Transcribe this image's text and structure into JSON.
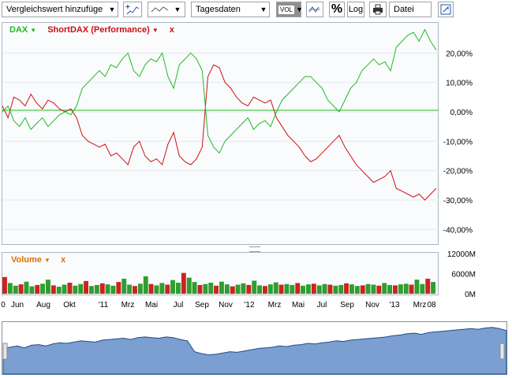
{
  "toolbar": {
    "compare_placeholder": "Vergleichswert hinzufüge",
    "interval": "Tagesdaten",
    "vol_label": "VOL",
    "percent_label": "%",
    "log_label": "Log",
    "file_label": "Datei"
  },
  "legend": {
    "dax": "DAX",
    "shortdax": "ShortDAX (Performance)",
    "remove": "x",
    "volume": "Volume"
  },
  "colors": {
    "dax": "#22bb22",
    "shortdax": "#cc1111",
    "volume": "#e07000",
    "navigator": "#7b9fd1"
  },
  "chart_data": [
    {
      "type": "line",
      "ylim": [
        -45,
        30
      ],
      "yticks": [
        20,
        10,
        0,
        -10,
        -20,
        -30,
        -40
      ],
      "ytick_labels": [
        "20,00%",
        "10,00%",
        "0,00%",
        "-10,00%",
        "-20,00%",
        "-30,00%",
        "-40,00%"
      ],
      "x_labels": [
        "0",
        "Jun",
        "Aug",
        "Okt",
        "'11",
        "Mrz",
        "Mai",
        "Jul",
        "Sep",
        "Nov",
        "'12",
        "Mrz",
        "Mai",
        "Jul",
        "Sep",
        "Nov",
        "'13",
        "Mrz",
        "08"
      ],
      "series": [
        {
          "name": "DAX",
          "values": [
            0,
            2,
            -3,
            -5,
            -2,
            -6,
            -4,
            -2,
            -5,
            -3,
            -1,
            0,
            -1,
            2,
            8,
            10,
            12,
            14,
            12,
            16,
            15,
            18,
            20,
            14,
            12,
            16,
            18,
            17,
            20,
            12,
            8,
            16,
            18,
            20,
            18,
            14,
            -8,
            -12,
            -14,
            -10,
            -8,
            -6,
            -4,
            -2,
            -6,
            -4,
            -3,
            -5,
            0,
            4,
            6,
            8,
            10,
            12,
            12,
            10,
            8,
            4,
            2,
            0,
            4,
            8,
            10,
            14,
            16,
            18,
            16,
            17,
            14,
            22,
            24,
            26,
            27,
            24,
            28,
            24,
            21
          ]
        },
        {
          "name": "ShortDAX (Performance)",
          "values": [
            2,
            -2,
            5,
            4,
            2,
            6,
            3,
            1,
            4,
            3,
            1,
            0,
            1,
            -2,
            -8,
            -10,
            -11,
            -12,
            -11,
            -15,
            -14,
            -16,
            -18,
            -12,
            -10,
            -15,
            -17,
            -16,
            -18,
            -11,
            -7,
            -15,
            -17,
            -18,
            -16,
            -12,
            12,
            16,
            15,
            10,
            8,
            5,
            3,
            2,
            5,
            4,
            3,
            4,
            -2,
            -5,
            -8,
            -10,
            -12,
            -15,
            -17,
            -16,
            -14,
            -12,
            -10,
            -8,
            -12,
            -15,
            -18,
            -20,
            -22,
            -24,
            -23,
            -22,
            -20,
            -26,
            -27,
            -28,
            -29,
            -28,
            -30,
            -28,
            -26
          ]
        }
      ]
    },
    {
      "type": "bar",
      "ylim": [
        0,
        12000
      ],
      "yticks": [
        0,
        6000,
        12000
      ],
      "ytick_labels": [
        "0M",
        "6000M",
        "12000M"
      ],
      "series": [
        {
          "name": "Volume",
          "values": [
            5000,
            3200,
            2400,
            2800,
            3600,
            2200,
            2600,
            3000,
            4200,
            2500,
            2100,
            2700,
            3300,
            2400,
            2900,
            3800,
            2300,
            2600,
            3100,
            2800,
            2400,
            3500,
            4500,
            2700,
            2300,
            3000,
            5200,
            2900,
            2500,
            3200,
            2700,
            4100,
            3300,
            6200,
            4800,
            3500,
            2600,
            2900,
            3300,
            2400,
            3600,
            2800,
            2200,
            2700,
            3100,
            2600,
            3900,
            2500,
            2300,
            2800,
            3400,
            2700,
            2900,
            2600,
            3200,
            2400,
            2800,
            3000,
            2500,
            2900,
            2700,
            2400,
            2600,
            3100,
            2800,
            2300,
            2500,
            2900,
            2700,
            2400,
            3200,
            2600,
            2500,
            2800,
            3000,
            2700,
            4200,
            2900,
            4500,
            3500
          ]
        }
      ]
    },
    {
      "type": "area",
      "values": [
        40,
        42,
        44,
        41,
        45,
        46,
        44,
        47,
        49,
        48,
        50,
        52,
        51,
        50,
        53,
        54,
        55,
        56,
        54,
        57,
        58,
        57,
        56,
        58,
        57,
        54,
        52,
        35,
        32,
        30,
        31,
        33,
        35,
        34,
        36,
        38,
        40,
        41,
        42,
        44,
        43,
        45,
        46,
        48,
        47,
        49,
        50,
        52,
        51,
        53,
        54,
        55,
        56,
        57,
        58,
        60,
        61,
        63,
        64,
        62,
        65,
        66,
        67,
        68,
        69,
        70,
        71,
        70,
        72,
        73,
        71,
        68
      ]
    }
  ]
}
